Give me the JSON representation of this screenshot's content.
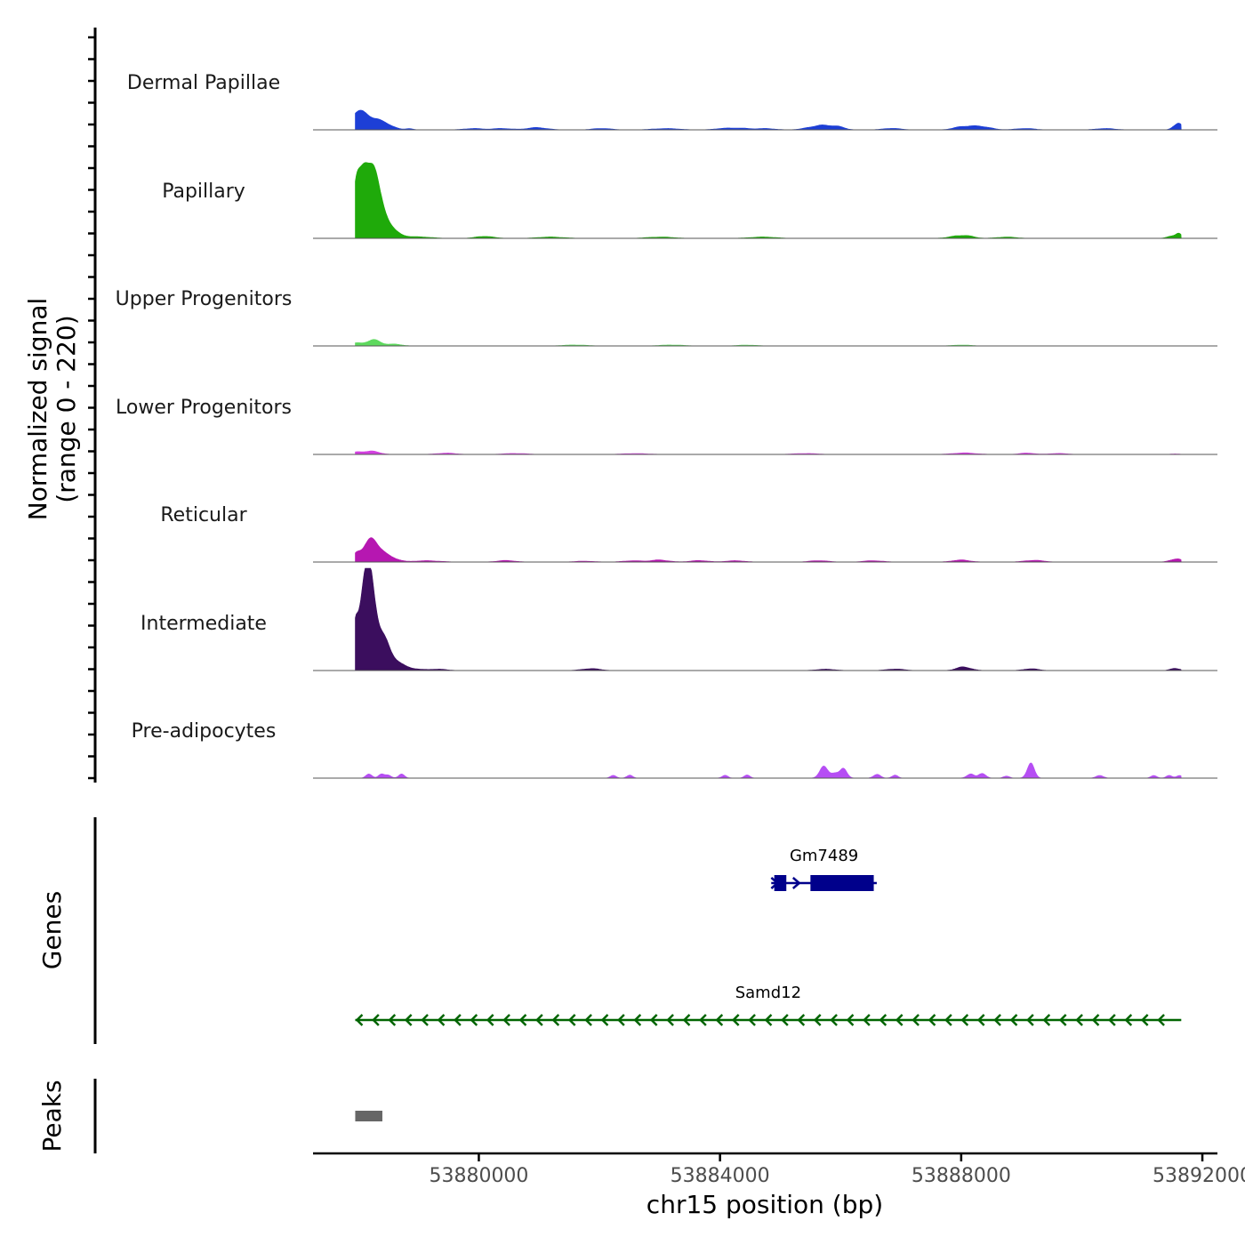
{
  "chart_data": {
    "type": "area",
    "ylabel_line1": "Normalized signal",
    "ylabel_line2": "(range 0 - 220)",
    "xlabel": "chr15 position (bp)",
    "xlim": [
      53877250,
      53892250
    ],
    "ylim": [
      0,
      220
    ],
    "x_ticks": [
      53880000,
      53884000,
      53888000,
      53892000
    ],
    "tracks": [
      {
        "name": "Dermal Papillae",
        "color": "#1d3fd6",
        "peaks": [
          [
            53877950,
            100,
            18
          ],
          [
            53878050,
            150,
            25
          ],
          [
            53878250,
            140,
            18
          ],
          [
            53878500,
            120,
            8
          ],
          [
            53878850,
            60,
            3
          ],
          [
            53879900,
            150,
            3
          ],
          [
            53880400,
            150,
            3
          ],
          [
            53880900,
            150,
            3
          ],
          [
            53881050,
            150,
            2
          ],
          [
            53882050,
            150,
            3
          ],
          [
            53883100,
            200,
            3
          ],
          [
            53884050,
            150,
            3
          ],
          [
            53884350,
            150,
            3
          ],
          [
            53884750,
            150,
            3
          ],
          [
            53885650,
            180,
            10
          ],
          [
            53885950,
            120,
            5
          ],
          [
            53886850,
            150,
            3
          ],
          [
            53888050,
            150,
            8
          ],
          [
            53888350,
            150,
            6
          ],
          [
            53889050,
            150,
            3
          ],
          [
            53890400,
            150,
            3
          ],
          [
            53891550,
            60,
            8
          ],
          [
            53891620,
            50,
            10
          ]
        ]
      },
      {
        "name": "Papillary",
        "color": "#1faa0a",
        "peaks": [
          [
            53877950,
            60,
            90
          ],
          [
            53878080,
            90,
            120
          ],
          [
            53878220,
            90,
            110
          ],
          [
            53878380,
            120,
            55
          ],
          [
            53878600,
            150,
            10
          ],
          [
            53879000,
            200,
            3
          ],
          [
            53880100,
            150,
            4
          ],
          [
            53881200,
            200,
            3
          ],
          [
            53883000,
            200,
            3
          ],
          [
            53884700,
            200,
            3
          ],
          [
            53887950,
            150,
            5
          ],
          [
            53888100,
            120,
            3
          ],
          [
            53888750,
            150,
            3
          ],
          [
            53891500,
            80,
            5
          ],
          [
            53891610,
            50,
            8
          ]
        ]
      },
      {
        "name": "Upper Progenitors",
        "color": "#5ed95e",
        "peaks": [
          [
            53877950,
            100,
            6
          ],
          [
            53878250,
            120,
            12
          ],
          [
            53878600,
            120,
            4
          ],
          [
            53881600,
            200,
            2
          ],
          [
            53883200,
            200,
            2
          ],
          [
            53884450,
            150,
            2
          ],
          [
            53888000,
            150,
            2
          ]
        ]
      },
      {
        "name": "Lower Progenitors",
        "color": "#d33fe0",
        "peaks": [
          [
            53877980,
            120,
            5
          ],
          [
            53878250,
            120,
            6
          ],
          [
            53879450,
            150,
            3
          ],
          [
            53880600,
            200,
            2
          ],
          [
            53882600,
            200,
            2
          ],
          [
            53885400,
            200,
            2
          ],
          [
            53888050,
            200,
            3
          ],
          [
            53889100,
            120,
            3
          ],
          [
            53889600,
            150,
            2
          ],
          [
            53891550,
            80,
            1
          ]
        ]
      },
      {
        "name": "Reticular",
        "color": "#b617b1",
        "peaks": [
          [
            53877970,
            60,
            12
          ],
          [
            53878150,
            120,
            25
          ],
          [
            53878300,
            120,
            35
          ],
          [
            53878560,
            120,
            8
          ],
          [
            53879150,
            200,
            3
          ],
          [
            53880450,
            150,
            3
          ],
          [
            53881750,
            150,
            2
          ],
          [
            53882550,
            150,
            3
          ],
          [
            53883000,
            150,
            4
          ],
          [
            53883650,
            150,
            3
          ],
          [
            53884250,
            150,
            3
          ],
          [
            53885650,
            150,
            3
          ],
          [
            53886550,
            150,
            3
          ],
          [
            53888000,
            150,
            4
          ],
          [
            53889200,
            150,
            4
          ],
          [
            53891500,
            80,
            4
          ],
          [
            53891620,
            60,
            6
          ]
        ]
      },
      {
        "name": "Intermediate",
        "color": "#3b0e5e",
        "peaks": [
          [
            53877950,
            40,
            60
          ],
          [
            53878080,
            90,
            150
          ],
          [
            53878220,
            80,
            160
          ],
          [
            53878380,
            120,
            70
          ],
          [
            53878600,
            120,
            15
          ],
          [
            53878850,
            150,
            5
          ],
          [
            53879300,
            150,
            3
          ],
          [
            53881850,
            150,
            4
          ],
          [
            53885750,
            150,
            3
          ],
          [
            53886900,
            150,
            3
          ],
          [
            53888050,
            120,
            8
          ],
          [
            53889150,
            120,
            4
          ],
          [
            53891550,
            80,
            5
          ]
        ]
      },
      {
        "name": "Pre-adipocytes",
        "color": "#b64ef4",
        "peaks": [
          [
            53878180,
            50,
            10
          ],
          [
            53878380,
            50,
            8
          ],
          [
            53878500,
            50,
            6
          ],
          [
            53878720,
            50,
            8
          ],
          [
            53882230,
            50,
            6
          ],
          [
            53882500,
            50,
            6
          ],
          [
            53884080,
            50,
            6
          ],
          [
            53884450,
            50,
            6
          ],
          [
            53885720,
            70,
            25
          ],
          [
            53885900,
            60,
            10
          ],
          [
            53886050,
            60,
            18
          ],
          [
            53886600,
            60,
            8
          ],
          [
            53886900,
            50,
            6
          ],
          [
            53888150,
            60,
            10
          ],
          [
            53888350,
            60,
            10
          ],
          [
            53888750,
            50,
            5
          ],
          [
            53889150,
            60,
            30
          ],
          [
            53890300,
            60,
            6
          ],
          [
            53891200,
            50,
            6
          ],
          [
            53891450,
            50,
            6
          ],
          [
            53891620,
            50,
            6
          ]
        ]
      }
    ],
    "genes": [
      {
        "name": "Gm7489",
        "strand": "+",
        "start": 53884850,
        "end": 53886600,
        "exons": [
          [
            53884900,
            53885100
          ],
          [
            53885500,
            53886550
          ]
        ]
      },
      {
        "name": "Samd12",
        "strand": "-",
        "start": 53877950,
        "end": 53891650,
        "exons": []
      }
    ],
    "peaks_track": [
      [
        53877950,
        53878400
      ]
    ],
    "side_titles": {
      "genes": "Genes",
      "peaks": "Peaks"
    }
  },
  "colors": {
    "gene_gm7489": "#00008b",
    "gene_samd12": "#006400",
    "peak_box": "#666666",
    "baseline": "#555555"
  }
}
